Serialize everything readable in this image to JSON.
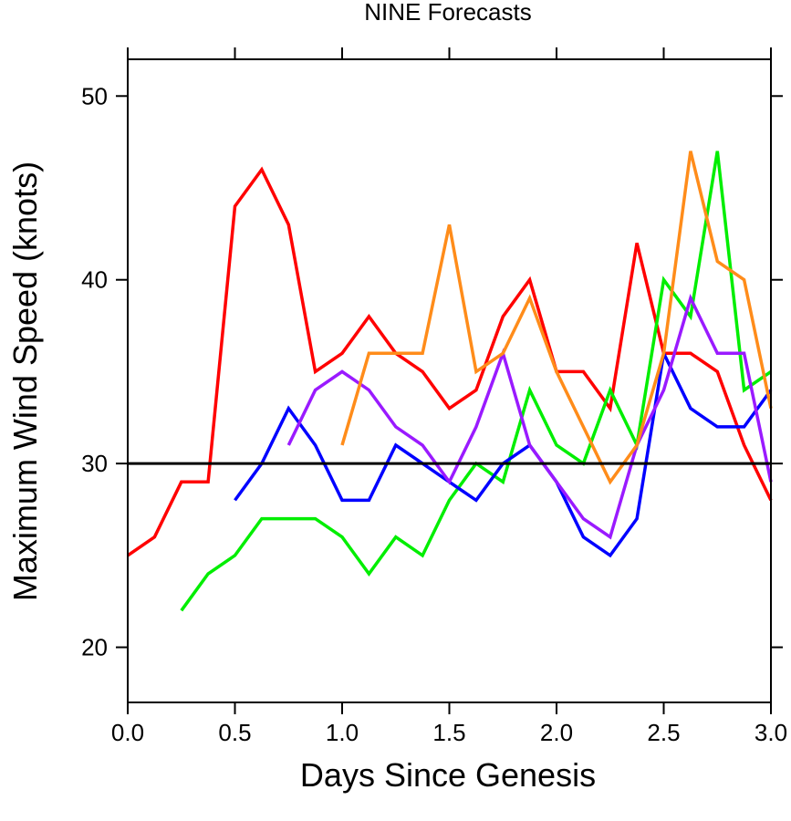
{
  "chart_data": {
    "type": "line",
    "title": "NINE Forecasts",
    "xlabel": "Days Since Genesis",
    "ylabel": "Maximum Wind Speed (knots)",
    "xlim": [
      0.0,
      3.0
    ],
    "ylim": [
      17,
      52
    ],
    "x_ticks": [
      "0.0",
      "0.5",
      "1.0",
      "1.5",
      "2.0",
      "2.5",
      "3.0"
    ],
    "x_tick_values": [
      0.0,
      0.5,
      1.0,
      1.5,
      2.0,
      2.5,
      3.0
    ],
    "y_ticks": [
      "20",
      "30",
      "40",
      "50"
    ],
    "y_tick_values": [
      20,
      30,
      40,
      50
    ],
    "grid": false,
    "reference_line": {
      "y": 30,
      "color": "#000000"
    },
    "series": [
      {
        "color": "#ff0000",
        "x": [
          0,
          0.125,
          0.25,
          0.375,
          0.5,
          0.625,
          0.75,
          0.875,
          1.0,
          1.125,
          1.25,
          1.375,
          1.5,
          1.625,
          1.75,
          1.875,
          2.0,
          2.125,
          2.25,
          2.375,
          2.5,
          2.625,
          2.75,
          2.875,
          3.0
        ],
        "values": [
          25,
          26,
          29,
          29,
          44,
          46,
          43,
          35,
          36,
          38,
          36,
          35,
          33,
          34,
          38,
          40,
          35,
          35,
          33,
          42,
          36,
          36,
          35,
          31,
          28
        ]
      },
      {
        "color": "#00ee00",
        "x": [
          0.25,
          0.375,
          0.5,
          0.625,
          0.75,
          0.875,
          1.0,
          1.125,
          1.25,
          1.375,
          1.5,
          1.625,
          1.75,
          1.875,
          2.0,
          2.125,
          2.25,
          2.375,
          2.5,
          2.625,
          2.75,
          2.875,
          3.0
        ],
        "values": [
          22,
          24,
          25,
          27,
          27,
          27,
          26,
          24,
          26,
          25,
          28,
          30,
          29,
          34,
          31,
          30,
          34,
          31,
          40,
          38,
          47,
          34,
          35
        ]
      },
      {
        "color": "#0000ff",
        "x": [
          0.5,
          0.625,
          0.75,
          0.875,
          1.0,
          1.125,
          1.25,
          1.375,
          1.5,
          1.625,
          1.75,
          1.875,
          2.0,
          2.125,
          2.25,
          2.375,
          2.5,
          2.625,
          2.75,
          2.875,
          3.0
        ],
        "values": [
          28,
          30,
          33,
          31,
          28,
          28,
          31,
          30,
          29,
          28,
          30,
          31,
          29,
          26,
          25,
          27,
          36,
          33,
          32,
          32,
          34
        ]
      },
      {
        "color": "#9a1aff",
        "x": [
          0.75,
          0.875,
          1.0,
          1.125,
          1.25,
          1.375,
          1.5,
          1.625,
          1.75,
          1.875,
          2.0,
          2.125,
          2.25,
          2.375,
          2.5,
          2.625,
          2.75,
          2.875,
          3.0
        ],
        "values": [
          31,
          34,
          35,
          34,
          32,
          31,
          29,
          32,
          36,
          31,
          29,
          27,
          26,
          31,
          34,
          39,
          36,
          36,
          29
        ]
      },
      {
        "color": "#ff8c1a",
        "x": [
          1.0,
          1.125,
          1.25,
          1.375,
          1.5,
          1.625,
          1.75,
          1.875,
          2.0,
          2.125,
          2.25,
          2.375,
          2.5,
          2.625,
          2.75,
          2.875,
          3.0
        ],
        "values": [
          31,
          36,
          36,
          36,
          43,
          35,
          36,
          39,
          35,
          32,
          29,
          31,
          36,
          47,
          41,
          40,
          33
        ]
      }
    ]
  }
}
